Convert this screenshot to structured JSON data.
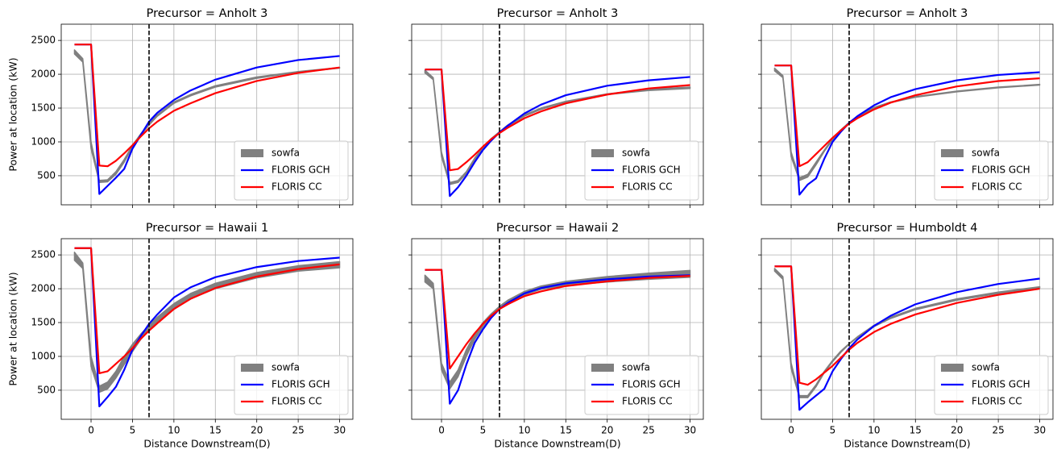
{
  "chart_data": [
    {
      "type": "line",
      "title": "Precursor = Anholt 3",
      "ylabel": "Power at location (kW)",
      "x": [
        -2,
        -1,
        0,
        1,
        2,
        3,
        4,
        5,
        6,
        7,
        8,
        10,
        12,
        15,
        20,
        25,
        30
      ],
      "xlim": [
        -3.6,
        31.6
      ],
      "xticks": [
        0,
        5,
        10,
        15,
        20,
        25,
        30
      ],
      "ylim": [
        70,
        2740
      ],
      "yticks": [
        500,
        1000,
        1500,
        2000,
        2500
      ],
      "grid": true,
      "vline": 7,
      "legend": "lower right",
      "series": [
        {
          "name": "sowfa",
          "color": "#808080",
          "upper": [
            2360,
            2230,
            1000,
            430,
            440,
            560,
            740,
            950,
            1120,
            1270,
            1400,
            1590,
            1700,
            1830,
            1960,
            2040,
            2100
          ],
          "lower": [
            2300,
            2180,
            900,
            400,
            410,
            520,
            700,
            920,
            1100,
            1250,
            1380,
            1570,
            1680,
            1810,
            1940,
            2030,
            2090
          ]
        },
        {
          "name": "FLORIS GCH",
          "color": "#0000ff",
          "values": [
            2440,
            2440,
            2440,
            230,
            350,
            470,
            600,
            900,
            1100,
            1300,
            1430,
            1620,
            1760,
            1920,
            2100,
            2210,
            2270
          ]
        },
        {
          "name": "FLORIS CC",
          "color": "#ff0000",
          "values": [
            2440,
            2440,
            2440,
            650,
            640,
            720,
            830,
            950,
            1080,
            1200,
            1300,
            1460,
            1570,
            1720,
            1900,
            2020,
            2100
          ]
        }
      ]
    },
    {
      "type": "line",
      "title": "Precursor = Anholt 3",
      "x": [
        -2,
        -1,
        0,
        1,
        2,
        3,
        4,
        5,
        6,
        7,
        8,
        10,
        12,
        15,
        20,
        25,
        30
      ],
      "xlim": [
        -3.6,
        31.6
      ],
      "xticks": [
        0,
        5,
        10,
        15,
        20,
        25,
        30
      ],
      "ylim": [
        70,
        2740
      ],
      "yticks": [
        500,
        1000,
        1500,
        2000,
        2500
      ],
      "grid": true,
      "vline": 7,
      "legend": "lower right",
      "series": [
        {
          "name": "sowfa",
          "color": "#808080",
          "upper": [
            2060,
            1950,
            850,
            400,
            430,
            560,
            760,
            920,
            1050,
            1150,
            1250,
            1400,
            1500,
            1600,
            1710,
            1780,
            1810
          ],
          "lower": [
            2020,
            1920,
            780,
            370,
            400,
            530,
            730,
            900,
            1030,
            1140,
            1230,
            1380,
            1480,
            1590,
            1700,
            1760,
            1790
          ]
        },
        {
          "name": "FLORIS GCH",
          "color": "#0000ff",
          "values": [
            2070,
            2070,
            2070,
            200,
            330,
            500,
            700,
            880,
            1020,
            1140,
            1240,
            1420,
            1550,
            1690,
            1830,
            1910,
            1960
          ]
        },
        {
          "name": "FLORIS CC",
          "color": "#ff0000",
          "values": [
            2070,
            2070,
            2070,
            580,
            600,
            700,
            810,
            930,
            1040,
            1130,
            1210,
            1350,
            1450,
            1570,
            1700,
            1790,
            1840
          ]
        }
      ]
    },
    {
      "type": "line",
      "title": "Precursor = Anholt 3",
      "x": [
        -2,
        -1,
        0,
        1,
        2,
        3,
        4,
        5,
        6,
        7,
        8,
        10,
        12,
        15,
        20,
        25,
        30
      ],
      "xlim": [
        -3.6,
        31.6
      ],
      "xticks": [
        0,
        5,
        10,
        15,
        20,
        25,
        30
      ],
      "ylim": [
        70,
        2740
      ],
      "yticks": [
        500,
        1000,
        1500,
        2000,
        2500
      ],
      "grid": true,
      "vline": 7,
      "legend": "lower right",
      "series": [
        {
          "name": "sowfa",
          "color": "#808080",
          "upper": [
            2090,
            1980,
            850,
            470,
            520,
            700,
            880,
            1050,
            1180,
            1290,
            1380,
            1510,
            1590,
            1670,
            1750,
            1810,
            1850
          ],
          "lower": [
            2050,
            1950,
            780,
            430,
            480,
            660,
            860,
            1030,
            1170,
            1280,
            1370,
            1500,
            1580,
            1660,
            1740,
            1800,
            1840
          ]
        },
        {
          "name": "FLORIS GCH",
          "color": "#0000ff",
          "values": [
            2130,
            2130,
            2130,
            220,
            370,
            460,
            750,
            1000,
            1150,
            1280,
            1380,
            1540,
            1660,
            1780,
            1910,
            1990,
            2030
          ]
        },
        {
          "name": "FLORIS CC",
          "color": "#ff0000",
          "values": [
            2130,
            2130,
            2130,
            640,
            700,
            820,
            940,
            1060,
            1170,
            1270,
            1350,
            1480,
            1580,
            1690,
            1820,
            1900,
            1940
          ]
        }
      ]
    },
    {
      "type": "line",
      "title": "Precursor = Hawaii 1",
      "ylabel": "Power at location (kW)",
      "xlabel": "Distance Downstream(D)",
      "x": [
        -2,
        -1,
        0,
        1,
        2,
        3,
        4,
        5,
        6,
        7,
        8,
        10,
        12,
        15,
        20,
        25,
        30
      ],
      "xlim": [
        -3.6,
        31.6
      ],
      "xticks": [
        0,
        5,
        10,
        15,
        20,
        25,
        30
      ],
      "ylim": [
        70,
        2740
      ],
      "yticks": [
        500,
        1000,
        1500,
        2000,
        2500
      ],
      "grid": true,
      "vline": 7,
      "legend": "lower right",
      "series": [
        {
          "name": "sowfa",
          "color": "#808080",
          "upper": [
            2540,
            2380,
            1000,
            560,
            620,
            780,
            1000,
            1180,
            1330,
            1460,
            1580,
            1780,
            1930,
            2080,
            2240,
            2340,
            2400
          ],
          "lower": [
            2420,
            2300,
            850,
            470,
            520,
            680,
            880,
            1070,
            1250,
            1390,
            1510,
            1700,
            1850,
            2000,
            2160,
            2260,
            2310
          ]
        },
        {
          "name": "FLORIS GCH",
          "color": "#0000ff",
          "values": [
            2600,
            2600,
            2600,
            260,
            400,
            550,
            800,
            1100,
            1300,
            1480,
            1620,
            1870,
            2020,
            2170,
            2320,
            2410,
            2460
          ]
        },
        {
          "name": "FLORIS CC",
          "color": "#ff0000",
          "values": [
            2600,
            2600,
            2600,
            750,
            780,
            890,
            1000,
            1120,
            1260,
            1380,
            1490,
            1700,
            1850,
            2010,
            2180,
            2290,
            2360
          ]
        }
      ]
    },
    {
      "type": "line",
      "title": "Precursor = Hawaii 2",
      "xlabel": "Distance Downstream(D)",
      "x": [
        -2,
        -1,
        0,
        1,
        2,
        3,
        4,
        5,
        6,
        7,
        8,
        10,
        12,
        15,
        20,
        25,
        30
      ],
      "xlim": [
        -3.6,
        31.6
      ],
      "xticks": [
        0,
        5,
        10,
        15,
        20,
        25,
        30
      ],
      "ylim": [
        70,
        2740
      ],
      "yticks": [
        500,
        1000,
        1500,
        2000,
        2500
      ],
      "grid": true,
      "vline": 7,
      "legend": "lower right",
      "series": [
        {
          "name": "sowfa",
          "color": "#808080",
          "upper": [
            2200,
            2080,
            900,
            620,
            800,
            1100,
            1330,
            1500,
            1630,
            1740,
            1830,
            1960,
            2040,
            2110,
            2180,
            2230,
            2270
          ],
          "lower": [
            2100,
            2000,
            800,
            520,
            700,
            1000,
            1250,
            1440,
            1580,
            1700,
            1780,
            1910,
            1990,
            2050,
            2100,
            2140,
            2170
          ]
        },
        {
          "name": "FLORIS GCH",
          "color": "#0000ff",
          "values": [
            2280,
            2280,
            2280,
            300,
            500,
            880,
            1200,
            1400,
            1570,
            1700,
            1790,
            1930,
            2010,
            2080,
            2140,
            2180,
            2200
          ]
        },
        {
          "name": "FLORIS CC",
          "color": "#ff0000",
          "values": [
            2280,
            2280,
            2280,
            820,
            1000,
            1180,
            1340,
            1480,
            1600,
            1700,
            1770,
            1890,
            1960,
            2040,
            2110,
            2160,
            2190
          ]
        }
      ]
    },
    {
      "type": "line",
      "title": "Precursor = Humboldt 4",
      "xlabel": "Distance Downstream(D)",
      "x": [
        -2,
        -1,
        0,
        1,
        2,
        3,
        4,
        5,
        6,
        7,
        8,
        10,
        12,
        15,
        20,
        25,
        30
      ],
      "xlim": [
        -3.6,
        31.6
      ],
      "xticks": [
        0,
        5,
        10,
        15,
        20,
        25,
        30
      ],
      "ylim": [
        70,
        2740
      ],
      "yticks": [
        500,
        1000,
        1500,
        2000,
        2500
      ],
      "grid": true,
      "vline": 7,
      "legend": "lower right",
      "series": [
        {
          "name": "sowfa",
          "color": "#808080",
          "upper": [
            2300,
            2180,
            900,
            420,
            420,
            580,
            780,
            940,
            1080,
            1190,
            1290,
            1460,
            1580,
            1710,
            1850,
            1950,
            2030
          ],
          "lower": [
            2260,
            2140,
            820,
            390,
            390,
            550,
            760,
            920,
            1060,
            1180,
            1280,
            1440,
            1560,
            1690,
            1830,
            1930,
            2010
          ]
        },
        {
          "name": "FLORIS GCH",
          "color": "#0000ff",
          "values": [
            2330,
            2330,
            2330,
            210,
            320,
            420,
            520,
            780,
            960,
            1120,
            1250,
            1450,
            1600,
            1770,
            1950,
            2070,
            2150
          ]
        },
        {
          "name": "FLORIS CC",
          "color": "#ff0000",
          "values": [
            2330,
            2330,
            2330,
            610,
            580,
            660,
            760,
            860,
            980,
            1100,
            1200,
            1360,
            1480,
            1620,
            1790,
            1910,
            2000
          ]
        }
      ]
    }
  ]
}
